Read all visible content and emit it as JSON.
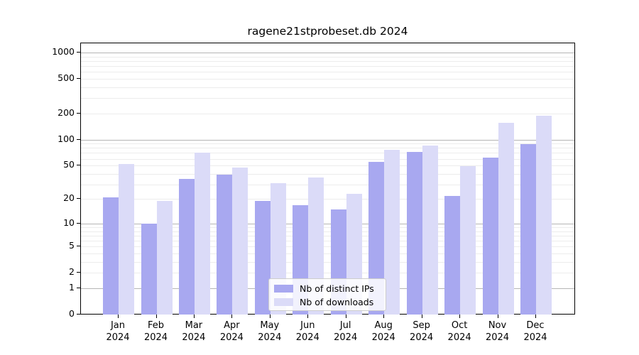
{
  "title": "ragene21stprobeset.db 2024",
  "legend": {
    "items": [
      {
        "label": "Nb of distinct IPs",
        "color": "#a8a8f0"
      },
      {
        "label": "Nb of downloads",
        "color": "#dbdbf8"
      }
    ]
  },
  "chart_data": {
    "type": "bar",
    "title": "ragene21stprobeset.db 2024",
    "y_scale": "log1p",
    "ylim": [
      0,
      1277
    ],
    "grid": "on",
    "legend_position": "inside-bottom-center",
    "categories": [
      {
        "month": "Jan",
        "year": "2024"
      },
      {
        "month": "Feb",
        "year": "2024"
      },
      {
        "month": "Mar",
        "year": "2024"
      },
      {
        "month": "Apr",
        "year": "2024"
      },
      {
        "month": "May",
        "year": "2024"
      },
      {
        "month": "Jun",
        "year": "2024"
      },
      {
        "month": "Jul",
        "year": "2024"
      },
      {
        "month": "Aug",
        "year": "2024"
      },
      {
        "month": "Sep",
        "year": "2024"
      },
      {
        "month": "Oct",
        "year": "2024"
      },
      {
        "month": "Nov",
        "year": "2024"
      },
      {
        "month": "Dec",
        "year": "2024"
      }
    ],
    "series": [
      {
        "name": "Nb of distinct IPs",
        "color": "#a8a8f0",
        "values": [
          21,
          10,
          35,
          39,
          19,
          17,
          15,
          55,
          72,
          22,
          62,
          88
        ]
      },
      {
        "name": "Nb of downloads",
        "color": "#dbdbf8",
        "values": [
          52,
          19,
          70,
          47,
          31,
          36,
          23,
          76,
          85,
          49,
          157,
          187
        ]
      }
    ],
    "y_ticks": [
      0,
      1,
      2,
      5,
      10,
      20,
      50,
      100,
      200,
      500,
      1000
    ],
    "grid_major": [
      1,
      10,
      100,
      1000
    ],
    "grid_minor": [
      2,
      3,
      4,
      5,
      6,
      7,
      8,
      9,
      20,
      30,
      40,
      50,
      60,
      70,
      80,
      90,
      200,
      300,
      400,
      500,
      600,
      700,
      800,
      900
    ]
  }
}
